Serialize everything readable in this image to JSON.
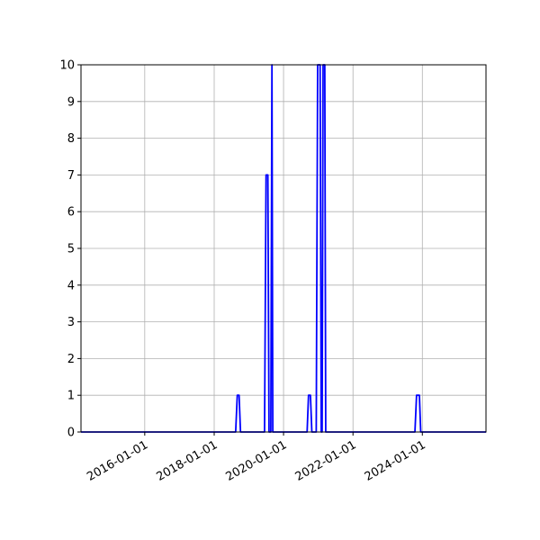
{
  "chart_data": {
    "type": "line",
    "title": "",
    "xlabel": "",
    "ylabel": "",
    "x_axis_type": "date",
    "xlim": [
      "2014-03-01",
      "2025-11-01"
    ],
    "ylim": [
      0,
      10
    ],
    "grid": true,
    "legend": "none",
    "line_color": "#0000ff",
    "y_ticks": [
      0,
      1,
      2,
      3,
      4,
      5,
      6,
      7,
      8,
      9,
      10
    ],
    "x_ticks": [
      "2016-01-01",
      "2018-01-01",
      "2020-01-01",
      "2022-01-01",
      "2024-01-01"
    ],
    "series": [
      {
        "points": [
          [
            "2014-03-01",
            0
          ],
          [
            "2018-08-15",
            0
          ],
          [
            "2018-09-01",
            1
          ],
          [
            "2018-09-20",
            1
          ],
          [
            "2018-10-05",
            0
          ],
          [
            "2019-06-15",
            0
          ],
          [
            "2019-07-01",
            7
          ],
          [
            "2019-07-20",
            7
          ],
          [
            "2019-08-01",
            0
          ],
          [
            "2019-08-20",
            0
          ],
          [
            "2019-09-01",
            10
          ],
          [
            "2019-09-10",
            0
          ],
          [
            "2020-09-05",
            0
          ],
          [
            "2020-09-20",
            1
          ],
          [
            "2020-10-10",
            1
          ],
          [
            "2020-10-25",
            0
          ],
          [
            "2020-12-10",
            0
          ],
          [
            "2020-12-25",
            10
          ],
          [
            "2021-01-20",
            10
          ],
          [
            "2021-02-01",
            0
          ],
          [
            "2021-02-10",
            0
          ],
          [
            "2021-02-20",
            10
          ],
          [
            "2021-03-10",
            10
          ],
          [
            "2021-03-20",
            0
          ],
          [
            "2023-10-15",
            0
          ],
          [
            "2023-11-01",
            1
          ],
          [
            "2023-12-01",
            1
          ],
          [
            "2023-12-15",
            0
          ],
          [
            "2025-11-01",
            0
          ]
        ]
      }
    ]
  }
}
